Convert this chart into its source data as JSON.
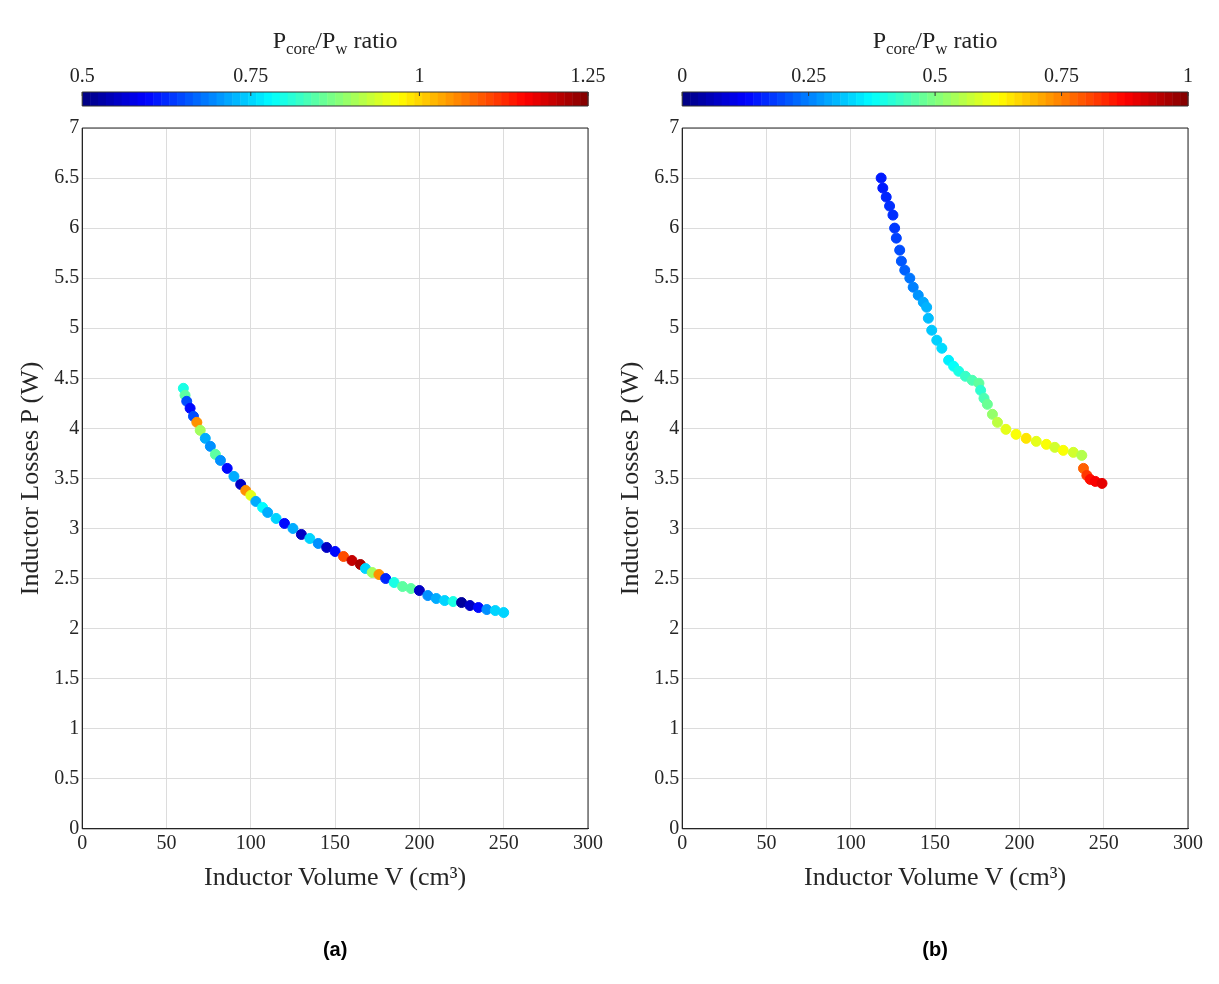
{
  "chart_data": [
    {
      "type": "scatter",
      "xlabel": "Inductor Volume V (cm³)",
      "ylabel": "Inductor Losses P (W)",
      "clabel": "P$_{core}$/P$_{w}$ ratio",
      "clim": [
        0.5,
        1.25
      ],
      "cticks": [
        0.5,
        0.75,
        1,
        1.25
      ],
      "xlim": [
        0,
        300
      ],
      "xticks": [
        0,
        50,
        100,
        150,
        200,
        250,
        300
      ],
      "ylim": [
        0,
        7
      ],
      "yticks": [
        0,
        0.5,
        1,
        1.5,
        2,
        2.5,
        3,
        3.5,
        4,
        4.5,
        5,
        5.5,
        6,
        6.5,
        7
      ],
      "grid": true,
      "marker": "circle",
      "annotations": [
        "(a)"
      ],
      "x": [
        60,
        61,
        62,
        64,
        66,
        68,
        70,
        73,
        76,
        79,
        82,
        86,
        90,
        94,
        97,
        100,
        103,
        107,
        110,
        115,
        120,
        125,
        130,
        135,
        140,
        145,
        150,
        155,
        160,
        165,
        168,
        172,
        176,
        180,
        185,
        190,
        195,
        200,
        205,
        210,
        215,
        220,
        225,
        230,
        235,
        240,
        245,
        250
      ],
      "values": [
        4.4,
        4.33,
        4.27,
        4.2,
        4.12,
        4.06,
        3.98,
        3.9,
        3.82,
        3.74,
        3.68,
        3.6,
        3.52,
        3.44,
        3.38,
        3.33,
        3.27,
        3.21,
        3.16,
        3.1,
        3.05,
        3.0,
        2.94,
        2.9,
        2.85,
        2.81,
        2.77,
        2.72,
        2.68,
        2.64,
        2.6,
        2.56,
        2.54,
        2.5,
        2.46,
        2.42,
        2.4,
        2.38,
        2.33,
        2.3,
        2.28,
        2.27,
        2.26,
        2.23,
        2.21,
        2.19,
        2.18,
        2.16
      ],
      "cvalues": [
        0.8,
        0.85,
        0.65,
        0.6,
        0.65,
        1.05,
        0.9,
        0.72,
        0.7,
        0.85,
        0.7,
        0.6,
        0.72,
        0.55,
        1.05,
        0.95,
        0.72,
        0.78,
        0.72,
        0.75,
        0.6,
        0.72,
        0.55,
        0.75,
        0.7,
        0.55,
        0.6,
        1.1,
        1.2,
        1.22,
        0.75,
        0.9,
        1.05,
        0.62,
        0.8,
        0.85,
        0.85,
        0.55,
        0.7,
        0.72,
        0.75,
        0.8,
        0.52,
        0.55,
        0.6,
        0.7,
        0.75,
        0.75
      ]
    },
    {
      "type": "scatter",
      "xlabel": "Inductor Volume V (cm³)",
      "ylabel": "Inductor Losses P (W)",
      "clabel": "P$_{core}$/P$_{w}$ ratio",
      "clim": [
        0,
        1
      ],
      "cticks": [
        0,
        0.25,
        0.5,
        0.75,
        1
      ],
      "xlim": [
        0,
        300
      ],
      "xticks": [
        0,
        50,
        100,
        150,
        200,
        250,
        300
      ],
      "ylim": [
        0,
        7
      ],
      "yticks": [
        0,
        0.5,
        1,
        1.5,
        2,
        2.5,
        3,
        3.5,
        4,
        4.5,
        5,
        5.5,
        6,
        6.5,
        7
      ],
      "grid": true,
      "marker": "circle",
      "annotations": [
        "(b)"
      ],
      "x": [
        118,
        119,
        121,
        123,
        125,
        126,
        127,
        129,
        130,
        132,
        135,
        137,
        140,
        143,
        145,
        146,
        148,
        151,
        154,
        158,
        161,
        164,
        168,
        172,
        176,
        177,
        179,
        181,
        184,
        187,
        192,
        198,
        204,
        210,
        216,
        221,
        226,
        232,
        237,
        238,
        240,
        242,
        245,
        249
      ],
      "values": [
        6.5,
        6.4,
        6.31,
        6.22,
        6.13,
        6.0,
        5.9,
        5.78,
        5.67,
        5.58,
        5.5,
        5.41,
        5.33,
        5.26,
        5.21,
        5.1,
        4.98,
        4.88,
        4.8,
        4.68,
        4.62,
        4.57,
        4.52,
        4.48,
        4.45,
        4.38,
        4.3,
        4.24,
        4.14,
        4.06,
        3.99,
        3.94,
        3.9,
        3.87,
        3.84,
        3.81,
        3.78,
        3.76,
        3.73,
        3.6,
        3.53,
        3.49,
        3.47,
        3.45
      ],
      "cvalues": [
        0.15,
        0.15,
        0.16,
        0.17,
        0.17,
        0.18,
        0.19,
        0.2,
        0.21,
        0.22,
        0.24,
        0.25,
        0.27,
        0.29,
        0.3,
        0.31,
        0.32,
        0.33,
        0.34,
        0.36,
        0.38,
        0.4,
        0.43,
        0.45,
        0.47,
        0.42,
        0.45,
        0.48,
        0.52,
        0.56,
        0.6,
        0.62,
        0.65,
        0.6,
        0.62,
        0.58,
        0.62,
        0.58,
        0.55,
        0.78,
        0.82,
        0.86,
        0.88,
        0.9
      ]
    }
  ]
}
